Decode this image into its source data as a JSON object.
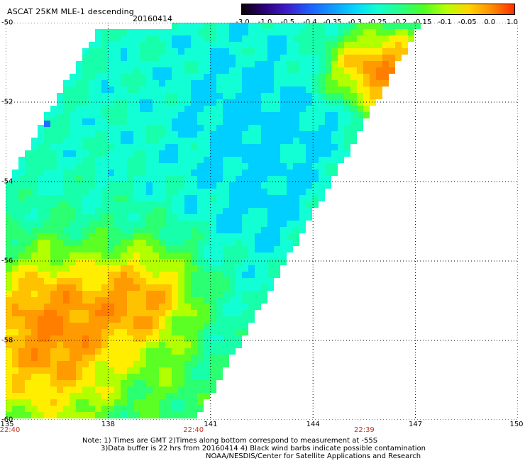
{
  "title": "ASCAT 25KM MLE-1 descending",
  "date": "20160414",
  "colorbar": {
    "labels": [
      "-3.0",
      "-1.0",
      "-0.5",
      "-0.4",
      "-0.35",
      "-0.3",
      "-0.25",
      "-0.2",
      "-0.15",
      "-0.1",
      "-0.05",
      "0.0",
      "1.0"
    ],
    "colors": [
      "#0a0008",
      "#2c007a",
      "#3f1cc9",
      "#1d5fff",
      "#119aff",
      "#05d7ff",
      "#12ffd0",
      "#27ff87",
      "#4dff22",
      "#b9ff05",
      "#ffd400",
      "#ff8c00",
      "#ff2d00"
    ]
  },
  "map": {
    "lat_labels": [
      "-50",
      "-52",
      "-54",
      "-56",
      "-58",
      "-60"
    ],
    "lon_labels": [
      "135",
      "138",
      "141",
      "144",
      "147",
      "150"
    ],
    "lon_range": [
      135,
      150
    ],
    "lat_range": [
      -50,
      -60
    ],
    "time_labels": [
      "22:40",
      "22:40",
      "22:39"
    ],
    "time_lons": [
      135,
      140.5,
      145.5
    ]
  },
  "notes": {
    "line1": "Note: 1) Times are GMT 2)Times along bottom correspond to measurement at -55S",
    "line2": "3)Data buffer is 22 hrs from 20160414 4) Black wind barbs indicate possible contamination",
    "line3": "NOAA/NESDIS/Center for Satellite Applications and Research"
  }
}
